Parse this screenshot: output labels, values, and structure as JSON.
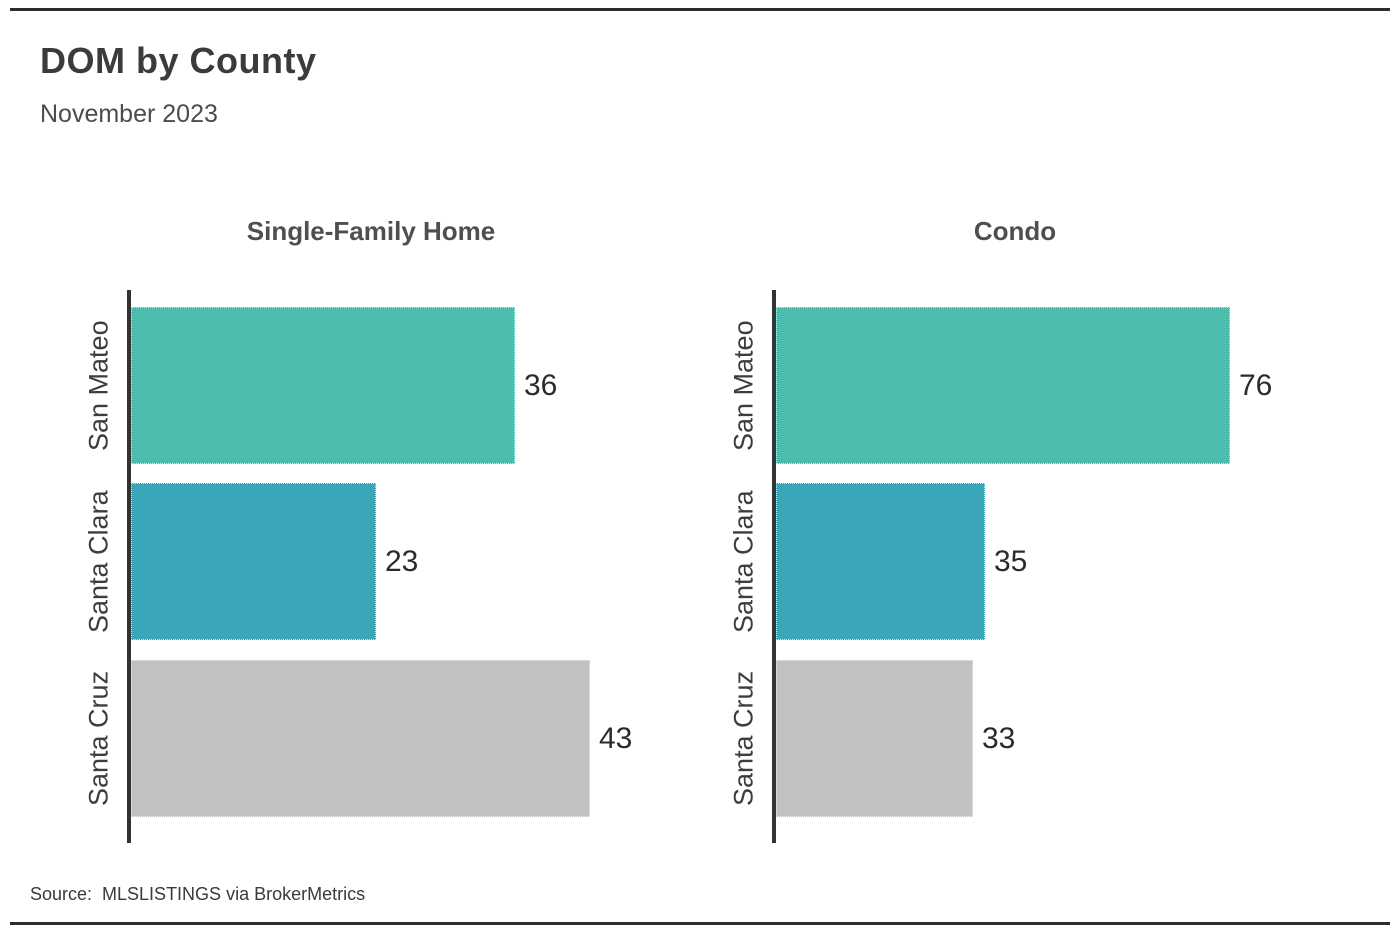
{
  "page": {
    "title": "DOM by County",
    "subtitle": "November 2023",
    "source": "Source:  MLSLISTINGS via BrokerMetrics"
  },
  "colors": {
    "rule": "#2d2d2d",
    "axis": "#333333",
    "title_text": "#3b3b3b",
    "label_text": "#3d3d3d",
    "bar_san_mateo": "#4CBCAC",
    "bar_santa_clara": "#39A7B7",
    "bar_santa_cruz": "#C1C1C1"
  },
  "chart_data": [
    {
      "type": "bar",
      "orientation": "horizontal",
      "title": "Single-Family Home",
      "categories": [
        "San Mateo",
        "Santa Clara",
        "Santa Cruz"
      ],
      "values": [
        36,
        23,
        43
      ],
      "data_labels": [
        "36",
        "23",
        "43"
      ],
      "bar_colors": [
        "#4CBCAC",
        "#39A7B7",
        "#C1C1C1"
      ],
      "xlim": [
        0,
        45
      ],
      "grid": false,
      "legend": false,
      "value_labels_position": "right-of-bar"
    },
    {
      "type": "bar",
      "orientation": "horizontal",
      "title": "Condo",
      "categories": [
        "San Mateo",
        "Santa Clara",
        "Santa Cruz"
      ],
      "values": [
        76,
        35,
        33
      ],
      "data_labels": [
        "76",
        "35",
        "33"
      ],
      "bar_colors": [
        "#4CBCAC",
        "#39A7B7",
        "#C1C1C1"
      ],
      "xlim": [
        0,
        80
      ],
      "grid": false,
      "legend": false,
      "value_labels_position": "right-of-bar"
    }
  ]
}
